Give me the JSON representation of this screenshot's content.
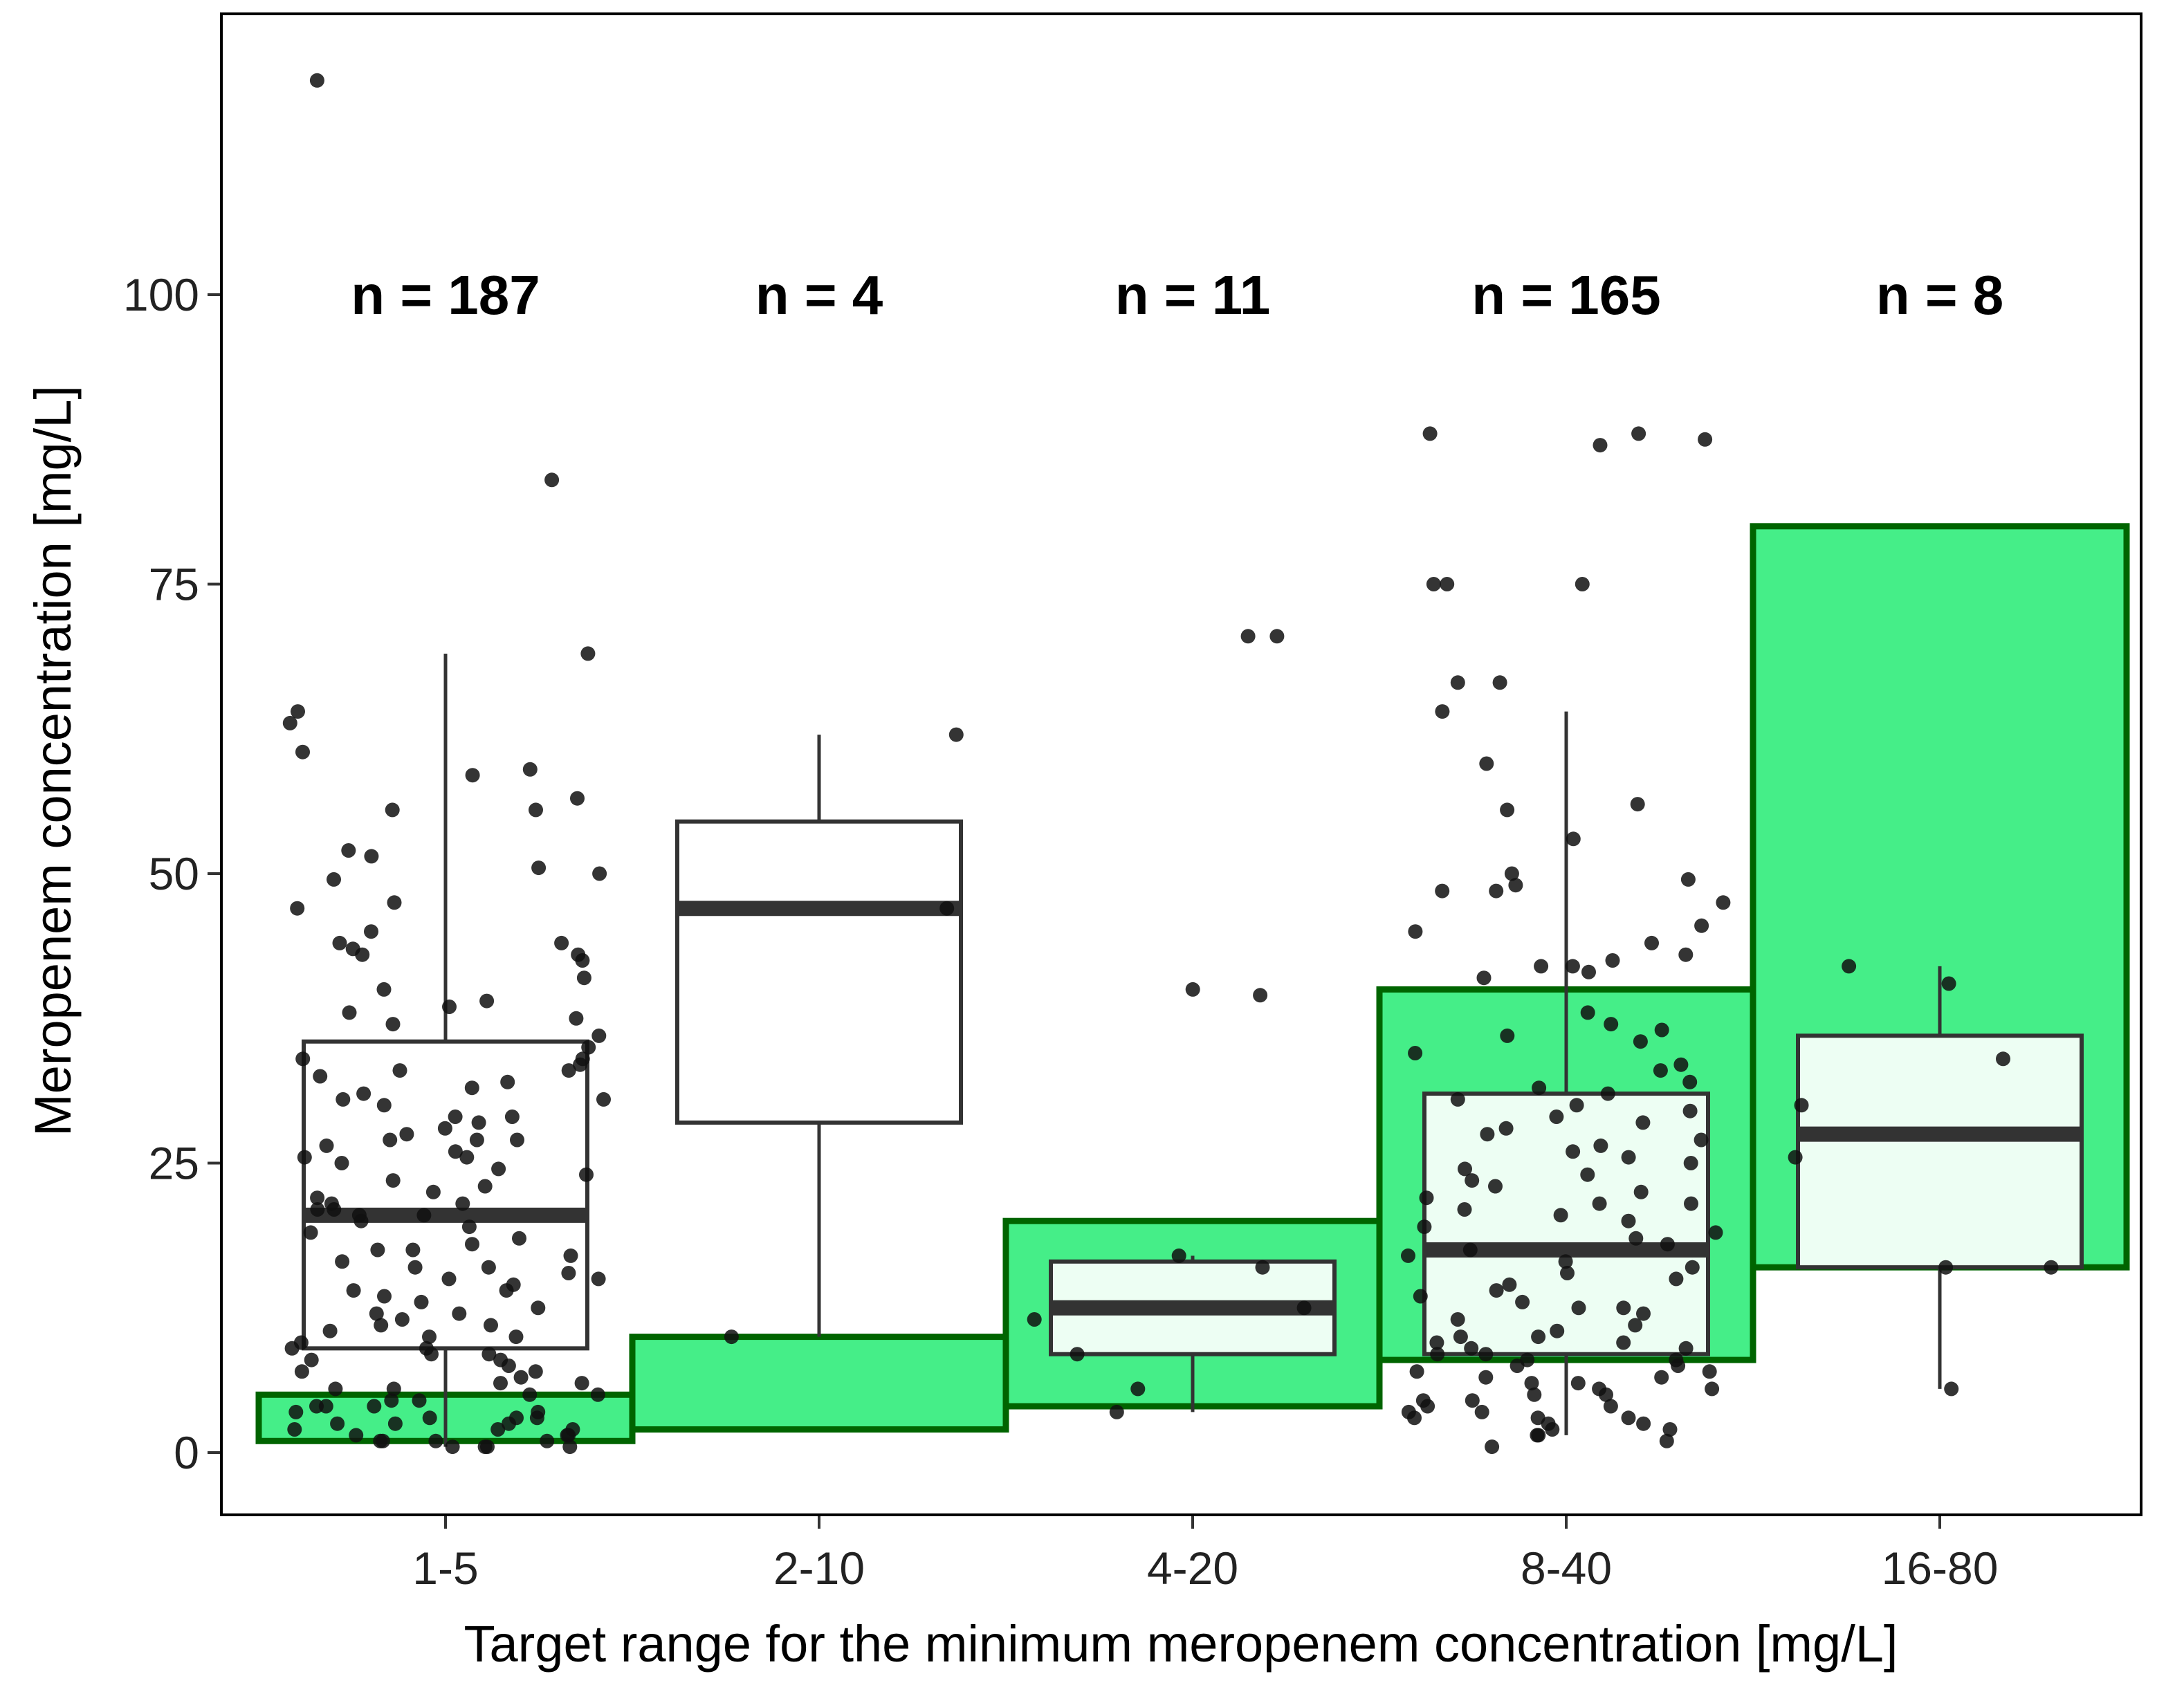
{
  "chart_data": {
    "type": "boxplot",
    "title": "",
    "xlabel": "Target range for the minimum meropenem concentration [mg/L]",
    "ylabel": "Meropenem concentration [mg/L]",
    "ylim": [
      -5.5,
      124
    ],
    "yticks": [
      0,
      25,
      50,
      75,
      100
    ],
    "colors": {
      "target_fill": "#45EE88",
      "target_stroke": "#006400",
      "box_stroke": "#333333",
      "point": "#111111"
    },
    "groups": [
      {
        "category": "1-5",
        "n_label": "n = 187",
        "target": [
          1,
          5
        ],
        "box": {
          "lower_whisker": 0.5,
          "q1": 9,
          "median": 20.5,
          "q3": 35.5,
          "upper_whisker": 69
        },
        "points": [
          118.5,
          84,
          69,
          64,
          63,
          60.5,
          59,
          58.5,
          56.5,
          55.5,
          55.5,
          52,
          51.5,
          50.5,
          50,
          49.5,
          47.5,
          47,
          45,
          44,
          44,
          43.5,
          43,
          43,
          42.5,
          41,
          40,
          39,
          38.5,
          38,
          37.5,
          37,
          36,
          35,
          34,
          34,
          33.5,
          33,
          33,
          32.5,
          32,
          31.5,
          31,
          30.5,
          30.5,
          30,
          29,
          29,
          28.5,
          28,
          27.5,
          27,
          27,
          27,
          26.5,
          26,
          25.5,
          25.5,
          25,
          24.5,
          24,
          23.5,
          23,
          22.5,
          22,
          21.5,
          21.5,
          21,
          21,
          20.5,
          20.5,
          20,
          19.5,
          19,
          18.5,
          18,
          17.5,
          17.5,
          17,
          16.5,
          16,
          16,
          15.5,
          15,
          15,
          14.5,
          14,
          14,
          13.5,
          13,
          12.5,
          12,
          12,
          11.5,
          11,
          11,
          10.5,
          10,
          10,
          9.5,
          9,
          9,
          8.5,
          8.5,
          8,
          8,
          7.5,
          7,
          7,
          6.5,
          6,
          6,
          5.5,
          5.5,
          5,
          5,
          4.5,
          4.5,
          4,
          4,
          4,
          3.5,
          3.5,
          3,
          3,
          3,
          2.5,
          2.5,
          2.5,
          2,
          2,
          2,
          1.5,
          1.5,
          1.5,
          1,
          1,
          1,
          1,
          0.5,
          0.5,
          0.5,
          0.5
        ]
      },
      {
        "category": "2-10",
        "n_label": "n = 4",
        "target": [
          2,
          10
        ],
        "box": {
          "lower_whisker": 10,
          "q1": 28.5,
          "median": 47,
          "q3": 54.5,
          "upper_whisker": 62
        },
        "points": [
          62,
          47,
          10
        ]
      },
      {
        "category": "4-20",
        "n_label": "n = 11",
        "target": [
          4,
          20
        ],
        "box": {
          "lower_whisker": 3.5,
          "q1": 8.5,
          "median": 12.5,
          "q3": 16.5,
          "upper_whisker": 17
        },
        "points": [
          70.5,
          70.5,
          40,
          39.5,
          17,
          16,
          12.5,
          11.5,
          8.5,
          5.5,
          3.5
        ]
      },
      {
        "category": "8-40",
        "n_label": "n = 165",
        "target": [
          8,
          40
        ],
        "box": {
          "lower_whisker": 1.5,
          "q1": 8.5,
          "median": 17.5,
          "q3": 31,
          "upper_whisker": 64
        },
        "points": [
          88,
          88,
          87.5,
          87,
          75,
          75,
          75,
          66.5,
          66.5,
          64,
          59.5,
          56,
          55.5,
          53,
          50,
          49.5,
          49,
          48.5,
          48.5,
          47.5,
          45.5,
          45,
          44,
          43,
          42.5,
          42,
          42,
          41.5,
          41,
          38,
          37,
          36.5,
          36,
          35.5,
          34.5,
          33.5,
          33,
          32,
          31.5,
          31,
          30.5,
          30,
          29.5,
          29,
          28.5,
          28,
          27.5,
          27,
          26.5,
          26,
          25.5,
          25,
          24.5,
          24,
          23.5,
          23,
          22.5,
          22,
          21.5,
          21.5,
          21,
          20.5,
          20,
          19.5,
          19,
          18.5,
          18,
          17.5,
          17,
          16.5,
          16,
          15.5,
          15,
          14.5,
          14,
          13.5,
          13,
          12.5,
          12.5,
          12,
          11.5,
          11,
          10.5,
          10,
          10,
          9.5,
          9.5,
          9,
          9,
          8.5,
          8.5,
          8,
          8,
          7.5,
          7.5,
          7,
          7,
          6.5,
          6.5,
          6,
          6,
          5.5,
          5.5,
          5,
          5,
          4.5,
          4.5,
          4,
          4,
          3.5,
          3.5,
          3,
          3,
          3,
          2.5,
          2.5,
          2,
          2,
          1.5,
          1.5,
          1,
          0.5
        ]
      },
      {
        "category": "16-80",
        "n_label": "n = 8",
        "target": [
          16,
          80
        ],
        "box": {
          "lower_whisker": 5.5,
          "q1": 16,
          "median": 27.5,
          "q3": 36,
          "upper_whisker": 42
        },
        "points": [
          42,
          40.5,
          34,
          30,
          25.5,
          16,
          16,
          5.5
        ]
      }
    ]
  }
}
